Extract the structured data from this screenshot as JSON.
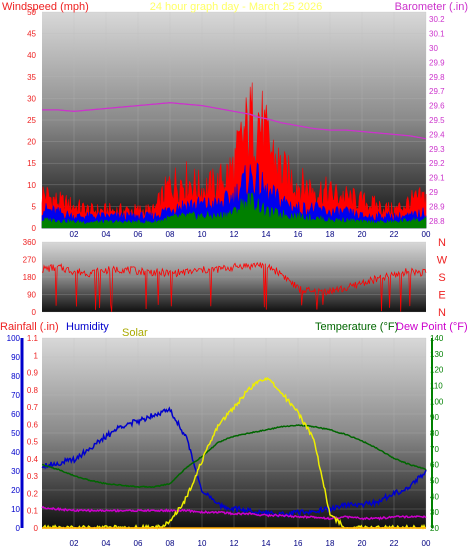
{
  "title": "24 hour graph day - March 25 2026",
  "colors": {
    "wind": "#ff0000",
    "gust_mid": "#0000ee",
    "wind_low": "#008000",
    "baro": "#cc33cc",
    "dir": "#ff0000",
    "rain": "#ee2222",
    "humidity": "#0000cc",
    "solar": "#eeee00",
    "temperature": "#006600",
    "dewpoint": "#cc00cc",
    "title": "#ffff66",
    "tick_left": "#ee2222",
    "tick_right_top": "#cc33cc",
    "tick_right_bottom": "#008000",
    "tick_x": "#000080"
  },
  "chart_data": [
    {
      "type": "line",
      "panel": "wind_baro",
      "title": "24 hour graph day - March 25 2026",
      "left_axis_label": "Windspeed (mph)",
      "right_axis_label": "Barometer (.in)",
      "x_ticks": [
        "02",
        "04",
        "06",
        "08",
        "10",
        "12",
        "14",
        "16",
        "18",
        "20",
        "22",
        "00"
      ],
      "y_left_range": [
        0,
        50
      ],
      "y_left_ticks": [
        "0",
        "5",
        "10",
        "15",
        "20",
        "25",
        "30",
        "35",
        "40",
        "45",
        "50"
      ],
      "y_right_range": [
        28.75,
        30.25
      ],
      "y_right_ticks": [
        "28.8",
        "28.9",
        "29",
        "29.1",
        "29.2",
        "29.3",
        "29.4",
        "29.5",
        "29.6",
        "29.7",
        "29.8",
        "29.9",
        "30",
        "30.1",
        "30.2"
      ],
      "x_hours": [
        0,
        1,
        2,
        3,
        4,
        5,
        6,
        7,
        8,
        9,
        10,
        11,
        12,
        12.5,
        13,
        13.5,
        14,
        15,
        16,
        17,
        18,
        19,
        20,
        21,
        22,
        23,
        24
      ],
      "series": [
        {
          "role": "gust",
          "values": [
            8,
            6,
            5,
            4,
            4,
            4,
            4,
            4,
            10,
            11,
            9,
            10,
            14,
            20,
            24,
            26,
            20,
            13,
            10,
            9,
            8,
            7,
            6,
            5,
            4,
            6,
            7
          ]
        },
        {
          "role": "average",
          "values": [
            5,
            4,
            3,
            3,
            3,
            3,
            3,
            3,
            5,
            6,
            6,
            6,
            8,
            11,
            13,
            12,
            9,
            7,
            5,
            5,
            4,
            4,
            3,
            3,
            3,
            3,
            4
          ]
        },
        {
          "role": "low",
          "values": [
            2,
            2,
            1.5,
            1.5,
            1.5,
            1.5,
            1.5,
            1.5,
            2.5,
            3,
            3,
            3,
            4,
            6,
            7,
            6,
            4,
            3.5,
            3,
            2.5,
            2,
            2,
            1.5,
            1.5,
            1.5,
            2,
            2
          ]
        },
        {
          "role": "barometer",
          "values": [
            29.57,
            29.57,
            29.56,
            29.57,
            29.58,
            29.59,
            29.6,
            29.61,
            29.62,
            29.61,
            29.6,
            29.58,
            29.56,
            29.55,
            29.54,
            29.52,
            29.51,
            29.48,
            29.46,
            29.44,
            29.43,
            29.43,
            29.42,
            29.41,
            29.4,
            29.39,
            29.37
          ]
        }
      ]
    },
    {
      "type": "scatter",
      "panel": "wind_direction",
      "y_range": [
        0,
        360
      ],
      "y_ticks": [
        "0",
        "90",
        "180",
        "270",
        "360"
      ],
      "compass_labels": [
        "N",
        "W",
        "S",
        "E",
        "N"
      ],
      "x_hours": [
        0,
        1,
        2,
        3,
        4,
        5,
        6,
        7,
        8,
        9,
        10,
        11,
        12,
        12.5,
        13,
        13.5,
        14,
        15,
        16,
        17,
        18,
        19,
        20,
        21,
        22,
        23,
        24
      ],
      "values": [
        220,
        230,
        210,
        200,
        215,
        220,
        210,
        205,
        200,
        205,
        215,
        220,
        230,
        240,
        235,
        245,
        240,
        195,
        120,
        100,
        110,
        120,
        150,
        170,
        190,
        210,
        200
      ]
    },
    {
      "type": "line",
      "panel": "temp_humidity_rain_solar",
      "legend": [
        "Rainfall (.in)",
        "Humidity",
        "Solar",
        "Temperature (°F)",
        "Dew Point (°F)"
      ],
      "x_ticks": [
        "02",
        "04",
        "06",
        "08",
        "10",
        "12",
        "14",
        "16",
        "18",
        "20",
        "22",
        "00"
      ],
      "y_humidity_range": [
        0,
        100
      ],
      "y_humidity_ticks": [
        "0",
        "10",
        "20",
        "30",
        "40",
        "50",
        "60",
        "70",
        "80",
        "90",
        "100"
      ],
      "y_rain_range": [
        0,
        1.1
      ],
      "y_rain_ticks": [
        "0",
        "0.1",
        "0.2",
        "0.3",
        "0.4",
        "0.5",
        "0.6",
        "0.7",
        "0.8",
        "0.9",
        "1",
        "1.1"
      ],
      "y_temp_range": [
        20,
        140
      ],
      "y_temp_ticks": [
        "20",
        "30",
        "40",
        "50",
        "60",
        "70",
        "80",
        "90",
        "100",
        "110",
        "120",
        "130",
        "140"
      ],
      "x_hours": [
        0,
        1,
        2,
        3,
        4,
        5,
        6,
        7,
        8,
        9,
        10,
        11,
        12,
        13,
        14,
        15,
        16,
        17,
        18,
        19,
        20,
        21,
        22,
        23,
        24
      ],
      "series": [
        {
          "name": "Humidity",
          "values": [
            33,
            34,
            36,
            42,
            48,
            54,
            56,
            60,
            62,
            48,
            20,
            12,
            10,
            9,
            8,
            7,
            8,
            9,
            10,
            12,
            12,
            14,
            18,
            22,
            30
          ]
        },
        {
          "name": "Temperature (°F)",
          "values": [
            60,
            57,
            53,
            50,
            48,
            47,
            46,
            46,
            48,
            58,
            65,
            74,
            78,
            80,
            82,
            84,
            85,
            84,
            82,
            79,
            75,
            70,
            64,
            60,
            57
          ]
        },
        {
          "name": "Dew Point (°F)",
          "values": [
            33,
            32,
            31,
            31,
            31,
            31,
            31,
            31,
            31,
            31,
            30,
            30,
            29,
            29,
            28,
            28,
            27,
            27,
            26,
            27,
            26,
            26,
            27,
            27,
            27
          ]
        },
        {
          "name": "Solar",
          "values": [
            0,
            0,
            0,
            0,
            0,
            0,
            0,
            0,
            20,
            110,
            250,
            380,
            450,
            520,
            560,
            500,
            430,
            330,
            50,
            0,
            0,
            0,
            0,
            0,
            0
          ]
        },
        {
          "name": "Rainfall (.in)",
          "values": [
            0,
            0,
            0,
            0,
            0,
            0,
            0,
            0,
            0,
            0,
            0,
            0,
            0,
            0,
            0,
            0,
            0,
            0,
            0,
            0,
            0,
            0,
            0,
            0,
            0
          ]
        }
      ]
    }
  ]
}
